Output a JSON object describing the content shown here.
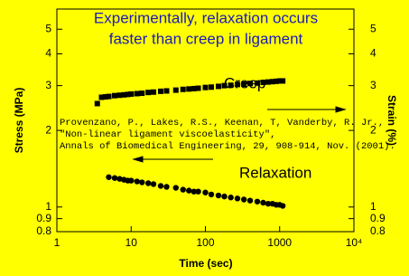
{
  "chart_data": {
    "type": "scatter",
    "title": [
      "Experimentally, relaxation occurs",
      "faster than creep in ligament"
    ],
    "xlabel": "Time (sec)",
    "ylabel": "Stress (MPa)",
    "y2label": "Strain (%)",
    "xscale": "log",
    "yscale": "log",
    "xlim": [
      1,
      10000
    ],
    "ylim": [
      0.8,
      6
    ],
    "y2lim": [
      0.8,
      6
    ],
    "xticks": [
      1,
      10,
      100,
      1000,
      {
        "value": 10000,
        "label": "10⁴"
      }
    ],
    "yticks": [
      0.8,
      0.9,
      1,
      2,
      3,
      4,
      5
    ],
    "y2ticks": [
      0.8,
      0.9,
      1,
      2,
      3,
      4,
      5
    ],
    "annotations": [
      "Provenzano, P., Lakes, R.S., Keenan, T, Vanderby, R. Jr.,",
      "\"Non-linear ligament viscoelasticity\",",
      "Annals of Biomedical Engineering, 29, 908-914, Nov. (2001)."
    ],
    "series": [
      {
        "name": "Creep",
        "marker": "square",
        "color": "#000000",
        "axis": "y2",
        "x": [
          3.5,
          4,
          4.5,
          5,
          6,
          7,
          8,
          9,
          10,
          12,
          14,
          17,
          20,
          25,
          30,
          40,
          50,
          60,
          70,
          80,
          100,
          120,
          150,
          180,
          220,
          270,
          330,
          400,
          500,
          600,
          700,
          800,
          900,
          1000,
          1100
        ],
        "values": [
          2.55,
          2.7,
          2.71,
          2.72,
          2.74,
          2.75,
          2.76,
          2.77,
          2.78,
          2.79,
          2.8,
          2.82,
          2.83,
          2.85,
          2.86,
          2.88,
          2.9,
          2.91,
          2.92,
          2.93,
          2.95,
          2.96,
          2.98,
          3.0,
          3.01,
          3.03,
          3.04,
          3.06,
          3.07,
          3.09,
          3.1,
          3.11,
          3.12,
          3.13,
          3.13
        ]
      },
      {
        "name": "Relaxation",
        "marker": "circle",
        "color": "#000000",
        "x": [
          5,
          6,
          7,
          8,
          9,
          10,
          12,
          14,
          17,
          20,
          25,
          30,
          40,
          50,
          60,
          70,
          80,
          100,
          120,
          150,
          180,
          220,
          270,
          330,
          400,
          500,
          600,
          700,
          800,
          900,
          1000,
          1100
        ],
        "values": [
          1.31,
          1.3,
          1.29,
          1.28,
          1.27,
          1.27,
          1.26,
          1.25,
          1.24,
          1.23,
          1.21,
          1.2,
          1.19,
          1.17,
          1.16,
          1.15,
          1.15,
          1.14,
          1.12,
          1.11,
          1.1,
          1.09,
          1.08,
          1.07,
          1.06,
          1.05,
          1.04,
          1.03,
          1.03,
          1.02,
          1.02,
          1.01
        ]
      }
    ]
  }
}
